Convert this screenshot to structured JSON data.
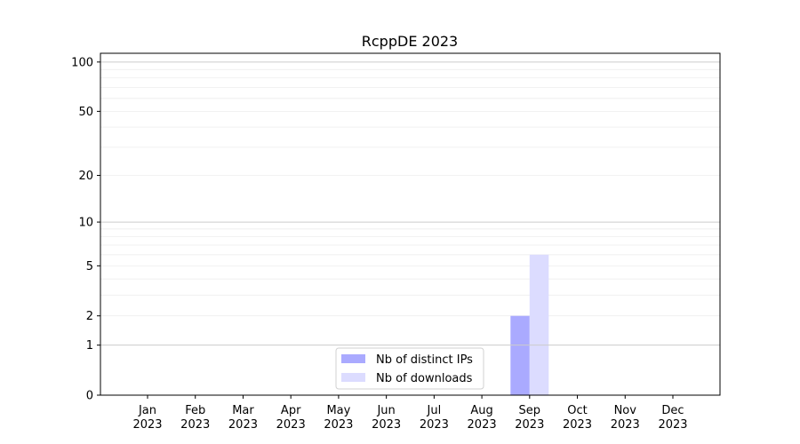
{
  "chart_data": {
    "type": "bar",
    "title": "RcppDE 2023",
    "xlabel": "",
    "ylabel": "",
    "yscale": "symlog (log10(1+y))",
    "ylim": [
      0,
      113
    ],
    "yticks": [
      0,
      1,
      2,
      5,
      10,
      20,
      50,
      100
    ],
    "grid": true,
    "legend_position": "lower-center",
    "categories": [
      "Jan\n2023",
      "Feb\n2023",
      "Mar\n2023",
      "Apr\n2023",
      "May\n2023",
      "Jun\n2023",
      "Jul\n2023",
      "Aug\n2023",
      "Sep\n2023",
      "Oct\n2023",
      "Nov\n2023",
      "Dec\n2023"
    ],
    "series": [
      {
        "name": "Nb of distinct IPs",
        "color": "#aaaaff",
        "values": [
          0,
          0,
          0,
          0,
          0,
          0,
          0,
          0,
          2,
          0,
          0,
          0
        ]
      },
      {
        "name": "Nb of downloads",
        "color": "#dcdcff",
        "values": [
          0,
          0,
          0,
          0,
          0,
          0,
          0,
          0,
          6,
          0,
          0,
          0
        ]
      }
    ]
  }
}
